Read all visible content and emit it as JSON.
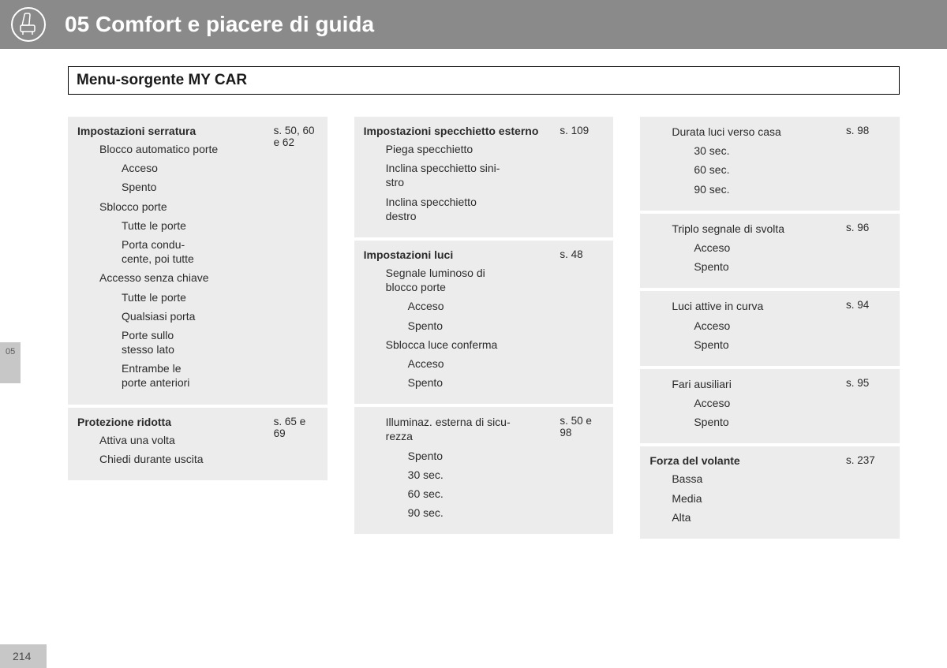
{
  "header": {
    "chapter_number": "05",
    "chapter_title": "Comfort e piacere di guida"
  },
  "section_title": "Menu-sorgente MY CAR",
  "side_tab": "05",
  "page_number": "214",
  "colors": {
    "header_bg": "#8a8a8a",
    "block_bg": "#ececec",
    "tab_bg": "#c7c7c7",
    "text": "#2b2b2b"
  },
  "col1": [
    {
      "ref": "s. 50, 60 e 62",
      "header": "Impostazioni serratura",
      "items": [
        {
          "t": "Blocco automatico porte",
          "l": 1
        },
        {
          "t": "Acceso",
          "l": 2
        },
        {
          "t": "Spento",
          "l": 2
        },
        {
          "t": "Sblocco porte",
          "l": 1
        },
        {
          "t": "Tutte le porte",
          "l": 2
        },
        {
          "t": "Porta condu-\ncente, poi tutte",
          "l": 2
        },
        {
          "t": "Accesso senza chiave",
          "l": 1
        },
        {
          "t": "Tutte le porte",
          "l": 2
        },
        {
          "t": "Qualsiasi porta",
          "l": 2
        },
        {
          "t": "Porte sullo\nstesso lato",
          "l": 2
        },
        {
          "t": "Entrambe le\nporte anteriori",
          "l": 2
        }
      ]
    },
    {
      "ref": "s. 65 e 69",
      "header": "Protezione ridotta",
      "items": [
        {
          "t": "Attiva una volta",
          "l": 1
        },
        {
          "t": "Chiedi durante uscita",
          "l": 1
        }
      ]
    }
  ],
  "col2": [
    {
      "ref": "s. 109",
      "header": "Impostazioni specchietto esterno",
      "items": [
        {
          "t": "Piega specchietto",
          "l": 1
        },
        {
          "t": "Inclina specchietto sini-\nstro",
          "l": 1
        },
        {
          "t": "Inclina specchietto\ndestro",
          "l": 1
        }
      ]
    },
    {
      "ref": "s. 48",
      "header": "Impostazioni luci",
      "items": [
        {
          "t": "Segnale luminoso di\nblocco porte",
          "l": 1
        },
        {
          "t": "Acceso",
          "l": 2
        },
        {
          "t": "Spento",
          "l": 2
        },
        {
          "t": "Sblocca luce conferma",
          "l": 1
        },
        {
          "t": "Acceso",
          "l": 2
        },
        {
          "t": "Spento",
          "l": 2
        }
      ]
    },
    {
      "ref": "s. 50 e 98",
      "items": [
        {
          "t": "Illuminaz. esterna di sicu-\nrezza",
          "l": 1
        },
        {
          "t": "Spento",
          "l": 2
        },
        {
          "t": "30 sec.",
          "l": 2
        },
        {
          "t": "60 sec.",
          "l": 2
        },
        {
          "t": "90 sec.",
          "l": 2
        }
      ]
    }
  ],
  "col3": [
    {
      "ref": "s. 98",
      "items": [
        {
          "t": "Durata luci verso casa",
          "l": 1
        },
        {
          "t": "30 sec.",
          "l": 2
        },
        {
          "t": "60 sec.",
          "l": 2
        },
        {
          "t": "90 sec.",
          "l": 2
        }
      ]
    },
    {
      "ref": "s. 96",
      "items": [
        {
          "t": "Triplo segnale di svolta",
          "l": 1
        },
        {
          "t": "Acceso",
          "l": 2
        },
        {
          "t": "Spento",
          "l": 2
        }
      ]
    },
    {
      "ref": "s. 94",
      "items": [
        {
          "t": "Luci attive in curva",
          "l": 1
        },
        {
          "t": "Acceso",
          "l": 2
        },
        {
          "t": "Spento",
          "l": 2
        }
      ]
    },
    {
      "ref": "s. 95",
      "items": [
        {
          "t": "Fari ausiliari",
          "l": 1
        },
        {
          "t": "Acceso",
          "l": 2
        },
        {
          "t": "Spento",
          "l": 2
        }
      ]
    },
    {
      "ref": "s. 237",
      "header": "Forza del volante",
      "items": [
        {
          "t": "Bassa",
          "l": 1
        },
        {
          "t": "Media",
          "l": 1
        },
        {
          "t": "Alta",
          "l": 1
        }
      ]
    }
  ]
}
